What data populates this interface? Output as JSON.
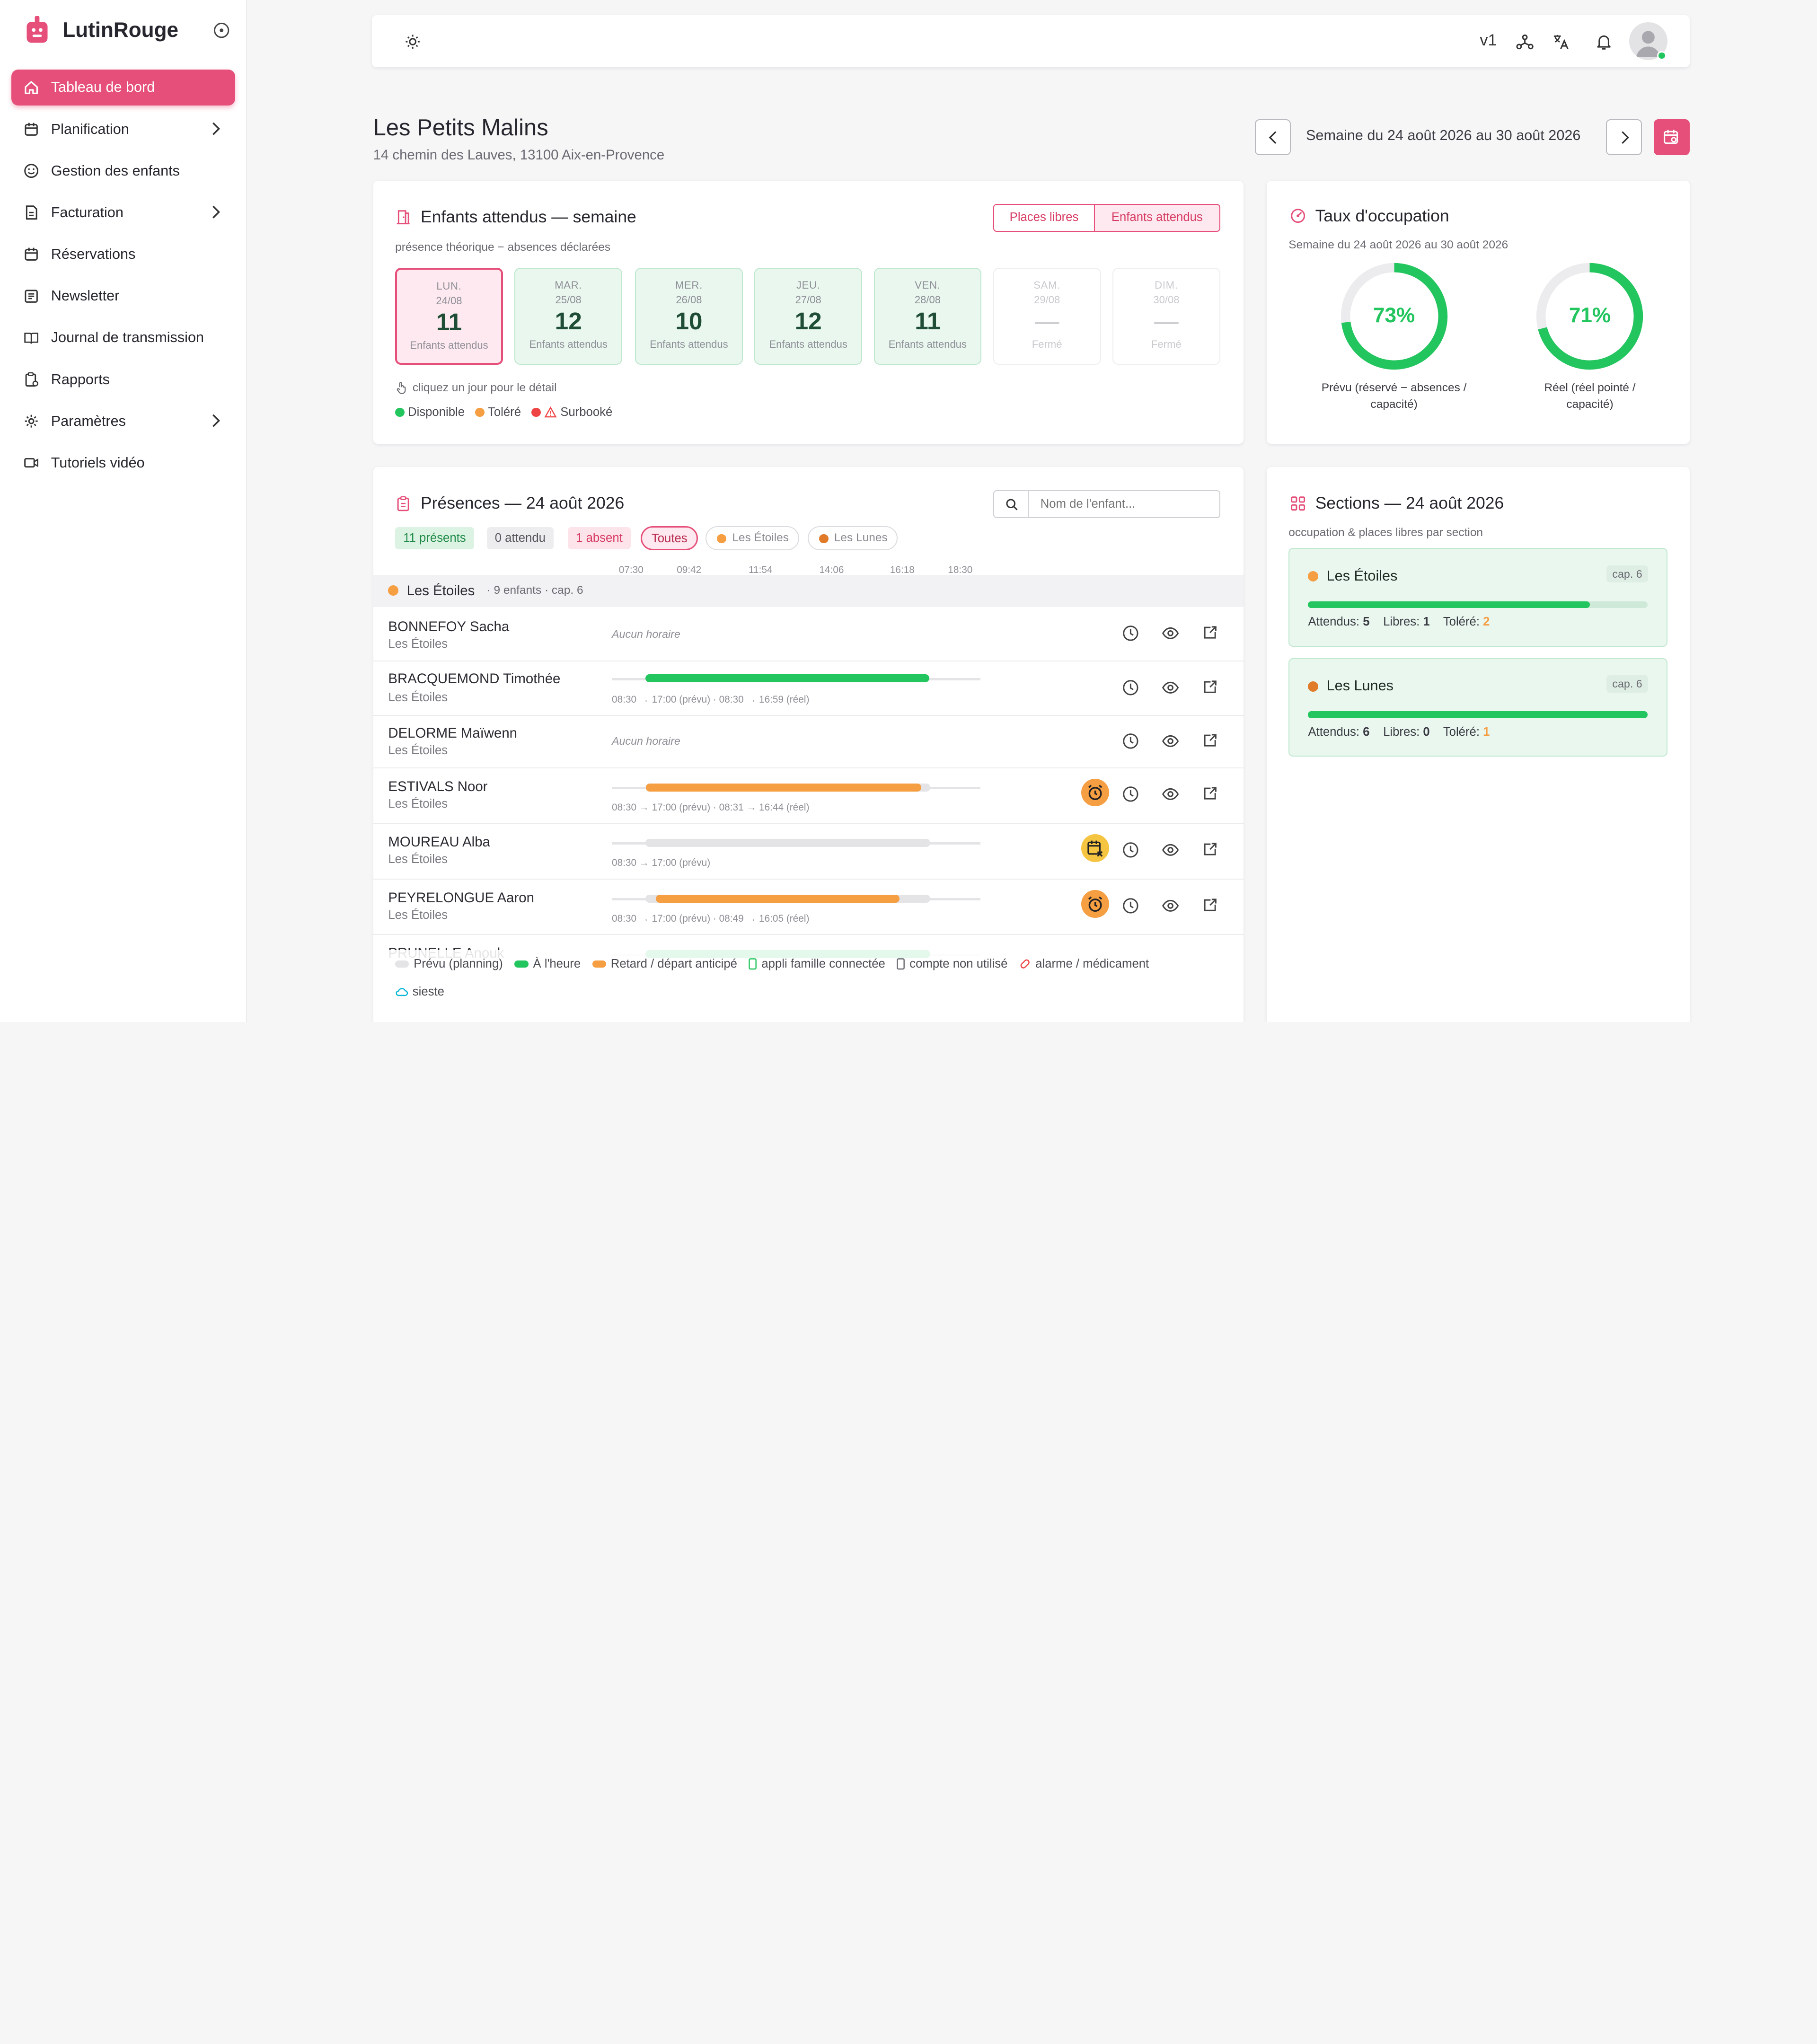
{
  "app": {
    "name": "LutinRouge"
  },
  "sidebar": {
    "items": [
      {
        "label": "Tableau de bord",
        "icon": "home-icon",
        "active": true
      },
      {
        "label": "Planification",
        "icon": "calendar-icon",
        "chevron": true
      },
      {
        "label": "Gestion des enfants",
        "icon": "smiley-icon"
      },
      {
        "label": "Facturation",
        "icon": "invoice-icon",
        "chevron": true
      },
      {
        "label": "Réservations",
        "icon": "calendar-icon"
      },
      {
        "label": "Newsletter",
        "icon": "newsletter-icon"
      },
      {
        "label": "Journal de transmission",
        "icon": "book-icon"
      },
      {
        "label": "Rapports",
        "icon": "report-icon"
      },
      {
        "label": "Paramètres",
        "icon": "gear-icon",
        "chevron": true
      },
      {
        "label": "Tutoriels vidéo",
        "icon": "video-icon"
      }
    ]
  },
  "topbar": {
    "version": "v1"
  },
  "header": {
    "title": "Les Petits Malins",
    "address": "14 chemin des Lauves, 13100 Aix-en-Provence",
    "week_label": "Semaine du 24 août 2026 au 30 août 2026"
  },
  "expected": {
    "title": "Enfants attendus — semaine",
    "subtitle": "présence théorique − absences déclarées",
    "toggle_free": "Places libres",
    "toggle_expected": "Enfants attendus",
    "days": [
      {
        "name": "LUN.",
        "date": "24/08",
        "count": "11",
        "label": "Enfants attendus",
        "state": "selected"
      },
      {
        "name": "MAR.",
        "date": "25/08",
        "count": "12",
        "label": "Enfants attendus",
        "state": "open"
      },
      {
        "name": "MER.",
        "date": "26/08",
        "count": "10",
        "label": "Enfants attendus",
        "state": "open"
      },
      {
        "name": "JEU.",
        "date": "27/08",
        "count": "12",
        "label": "Enfants attendus",
        "state": "open"
      },
      {
        "name": "VEN.",
        "date": "28/08",
        "count": "11",
        "label": "Enfants attendus",
        "state": "open"
      },
      {
        "name": "SAM.",
        "date": "29/08",
        "count": "—",
        "label": "Fermé",
        "state": "closed"
      },
      {
        "name": "DIM.",
        "date": "30/08",
        "count": "—",
        "label": "Fermé",
        "state": "closed"
      }
    ],
    "hint": "cliquez un jour pour le détail",
    "legend": [
      {
        "label": "Disponible",
        "color": "#22c55e"
      },
      {
        "label": "Toléré",
        "color": "#f59e42"
      },
      {
        "label": "Surbooké",
        "color": "#ef4444"
      }
    ]
  },
  "occupancy": {
    "title": "Taux d'occupation",
    "subtitle": "Semaine du 24 août 2026 au 30 août 2026",
    "gauges": [
      {
        "value": "73%",
        "fraction": 0.73,
        "label1": "Prévu (réservé − absences /",
        "label2": "capacité)"
      },
      {
        "value": "71%",
        "fraction": 0.71,
        "label1": "Réel (réel pointé /",
        "label2": "capacité)"
      }
    ]
  },
  "presences": {
    "title": "Présences — 24 août 2026",
    "search_placeholder": "Nom de l'enfant...",
    "filters": [
      {
        "label": "11 présents"
      },
      {
        "label": "0 attendu"
      },
      {
        "label": "1 absent"
      },
      {
        "label": "Toutes"
      },
      {
        "label": "Les Étoiles"
      },
      {
        "label": "Les Lunes"
      }
    ],
    "time_ticks": [
      "07:30",
      "09:42",
      "11:54",
      "14:06",
      "16:18",
      "18:30"
    ],
    "group": {
      "name": "Les Étoiles",
      "meta": "· 9 enfants · cap. 6"
    },
    "rows": [
      {
        "name": "BONNEFOY Sacha",
        "section": "Les Étoiles",
        "no_schedule": "Aucun horaire",
        "alert": "none"
      },
      {
        "name": "BRACQUEMOND Timothée",
        "section": "Les Étoiles",
        "times": "08:30 → 17:00 (prévu) · 08:30 → 16:59 (réel)",
        "status": "on-time",
        "plan_start": "08:30",
        "plan_end": "17:00",
        "real_start": "08:30",
        "real_end": "16:59",
        "alert": "none"
      },
      {
        "name": "DELORME Maïwenn",
        "section": "Les Étoiles",
        "no_schedule": "Aucun horaire",
        "alert": "none"
      },
      {
        "name": "ESTIVALS Noor",
        "section": "Les Étoiles",
        "times": "08:30 → 17:00 (prévu) · 08:31 → 16:44 (réel)",
        "status": "late",
        "plan_start": "08:30",
        "plan_end": "17:00",
        "real_start": "08:31",
        "real_end": "16:44",
        "alert": "alarm-clock-icon"
      },
      {
        "name": "MOUREAU Alba",
        "section": "Les Étoiles",
        "times": "08:30 → 17:00 (prévu)",
        "status": "planned",
        "plan_start": "08:30",
        "plan_end": "17:00",
        "alert": "calendar-x-icon"
      },
      {
        "name": "PEYRELONGUE Aaron",
        "section": "Les Étoiles",
        "times": "08:30 → 17:00 (prévu) · 08:49 → 16:05 (réel)",
        "status": "late",
        "plan_start": "08:30",
        "plan_end": "17:00",
        "real_start": "08:49",
        "real_end": "16:05",
        "alert": "alarm-clock-icon"
      },
      {
        "name": "PRUNELLE Anouk",
        "section": "",
        "status": "on-time",
        "plan_start": "08:30",
        "plan_end": "17:00",
        "real_start": "08:30",
        "real_end": "17:00",
        "alert": "none"
      }
    ],
    "legend": [
      {
        "label": "Prévu (planning)",
        "color": "#e4e4e7"
      },
      {
        "label": "À l'heure",
        "color": "#22c55e"
      },
      {
        "label": "Retard / départ anticipé",
        "color": "#f59e42"
      },
      {
        "label": "appli famille connectée",
        "color": "#22c55e"
      },
      {
        "label": "compte non utilisé",
        "color": "#6a6a72"
      },
      {
        "label": "alarme / médicament",
        "color": "#ef4444"
      },
      {
        "label": "sieste",
        "color": "#06b6d4"
      }
    ]
  },
  "sections": {
    "title": "Sections — 24 août 2026",
    "subtitle": "occupation & places libres par section",
    "items": [
      {
        "name": "Les Étoiles",
        "cap": "cap. 6",
        "fill": 0.83,
        "attendus_l": "Attendus:",
        "attendus": "5",
        "libres_l": "Libres:",
        "libres": "1",
        "tolere_l": "Toléré:",
        "tolere": "2"
      },
      {
        "name": "Les Lunes",
        "cap": "cap. 6",
        "fill": 1.0,
        "attendus_l": "Attendus:",
        "attendus": "6",
        "libres_l": "Libres:",
        "libres": "0",
        "tolere_l": "Toléré:",
        "tolere": "1"
      }
    ]
  },
  "colors": {
    "accent": "#e54f79",
    "green": "#22c55e",
    "orange": "#f59e42"
  }
}
